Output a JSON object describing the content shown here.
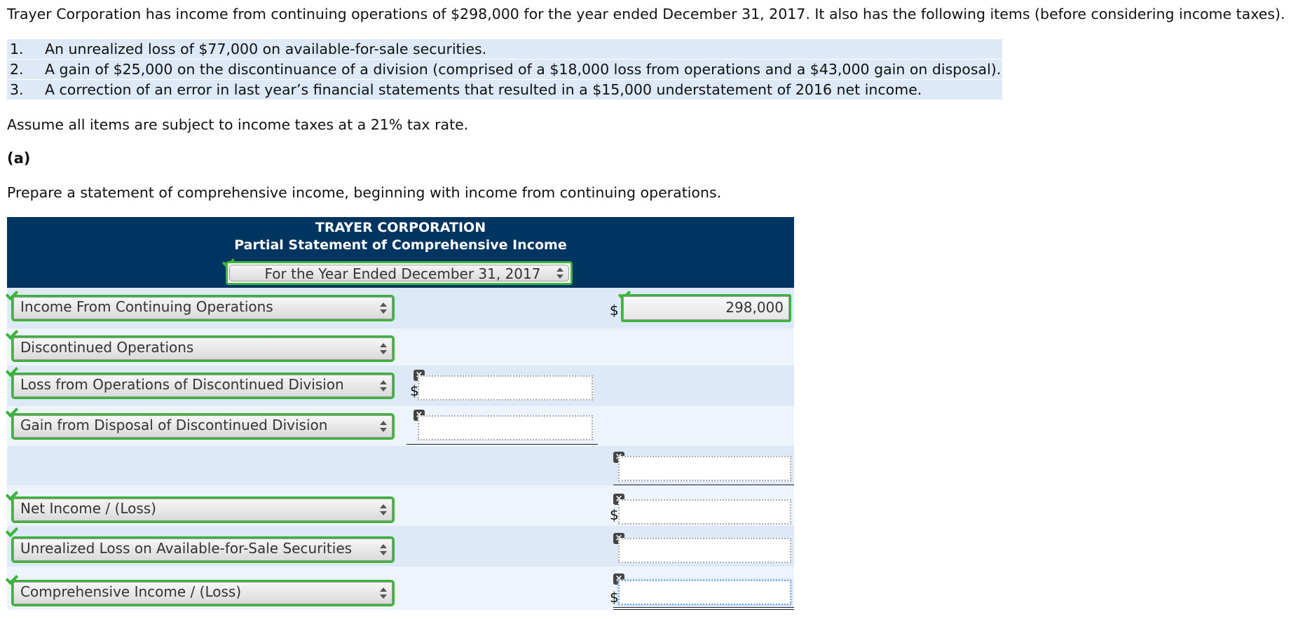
{
  "intro": "Trayer Corporation has income from continuing operations of $298,000 for the year ended December 31, 2017. It also has the following items (before considering income taxes).",
  "items": [
    {
      "num": "1.",
      "text": "An unrealized loss of $77,000 on available-for-sale securities."
    },
    {
      "num": "2.",
      "text": "A gain of $25,000 on the discontinuance of a division (comprised of a $18,000 loss from operations and a $43,000 gain on disposal)."
    },
    {
      "num": "3.",
      "text": "A correction of an error in last year’s financial statements that resulted in a $15,000 understatement of 2016 net income."
    }
  ],
  "assume": "Assume all items are subject to income taxes at a 21% tax rate.",
  "part_label": "(a)",
  "instruction": "Prepare a statement of comprehensive income, beginning with income from continuing operations.",
  "statement": {
    "company": "TRAYER CORPORATION",
    "title": "Partial Statement of Comprehensive Income",
    "period": "For the Year Ended December 31, 2017",
    "currency_symbol": "$",
    "rows": {
      "continuing": {
        "label": "Income From Continuing Operations",
        "value": "298,000"
      },
      "discontinued": {
        "label": "Discontinued Operations"
      },
      "loss_ops": {
        "label": "Loss from Operations of Discontinued Division",
        "value": ""
      },
      "gain_disposal": {
        "label": "Gain from Disposal of Discontinued Division",
        "value": ""
      },
      "subtotal": {
        "value": ""
      },
      "net_income": {
        "label": "Net Income / (Loss)",
        "value": ""
      },
      "unrealized": {
        "label": "Unrealized Loss on Available-for-Sale Securities",
        "value": ""
      },
      "comprehensive": {
        "label": "Comprehensive Income / (Loss)",
        "value": ""
      }
    }
  },
  "icons": {
    "correct": "checkmark-icon",
    "incorrect": "x-mark-icon"
  },
  "colors": {
    "header_bg": "#003461",
    "correct_green": "#3cb33c",
    "row_dark": "#dde9f6",
    "row_light": "#edf4fb"
  }
}
